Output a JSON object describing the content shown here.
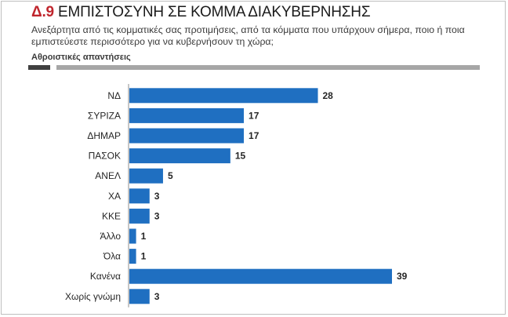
{
  "header": {
    "number": "Δ.9",
    "title": "ΕΜΠΙΣΤΟΣΥΝΗ ΣΕ ΚΟΜΜΑ ΔΙΑΚΥΒΕΡΝΗΣΗΣ",
    "question": "Ανεξάρτητα από τις κομματικές σας προτιμήσεις, από τα κόμματα που υπάρχουν σήμερα, ποιο ή ποια εμπιστεύεστε περισσότερο για να κυβερνήσουν τη χώρα;",
    "note": "Αθροιστικές απαντήσεις"
  },
  "colors": {
    "bar": "#1f6fc1",
    "title_number": "#c0262d",
    "rule_dark": "#404040",
    "rule_light": "#a6a6a6"
  },
  "chart_data": {
    "type": "bar",
    "orientation": "horizontal",
    "categories": [
      "ΝΔ",
      "ΣΥΡΙΖΑ",
      "ΔΗΜΑΡ",
      "ΠΑΣΟΚ",
      "ΑΝΕΛ",
      "ΧΑ",
      "ΚΚΕ",
      "Άλλο",
      "Όλα",
      "Κανένα",
      "Χωρίς γνώμη"
    ],
    "values": [
      28,
      17,
      17,
      15,
      5,
      3,
      3,
      1,
      1,
      39,
      3
    ],
    "data_labels": true,
    "grid": false,
    "xlim": [
      0,
      39
    ]
  }
}
